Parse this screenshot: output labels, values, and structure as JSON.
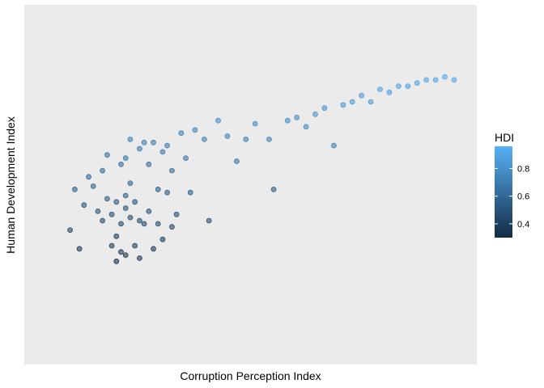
{
  "chart_data": {
    "type": "scatter",
    "xlabel": "Corruption Perception Index",
    "ylabel": "Human Development Index",
    "xlim": [
      1.0,
      10.0
    ],
    "ylim": [
      0.0,
      1.15
    ],
    "grid": false,
    "legend": {
      "title": "HDI",
      "placement": "right",
      "type": "colorbar",
      "range": [
        0.3,
        0.96
      ],
      "ticks": [
        "0.4",
        "0.6",
        "0.8"
      ],
      "tick_values": [
        0.4,
        0.6,
        0.8
      ],
      "color_low": "#132B43",
      "color_high": "#56B1F7"
    },
    "points": [
      [
        1.6,
        0.43
      ],
      [
        1.7,
        0.56
      ],
      [
        1.8,
        0.37
      ],
      [
        1.9,
        0.51
      ],
      [
        2.0,
        0.6
      ],
      [
        2.1,
        0.57
      ],
      [
        2.2,
        0.49
      ],
      [
        2.3,
        0.46
      ],
      [
        2.3,
        0.62
      ],
      [
        2.4,
        0.67
      ],
      [
        2.4,
        0.53
      ],
      [
        2.5,
        0.38
      ],
      [
        2.5,
        0.48
      ],
      [
        2.6,
        0.33
      ],
      [
        2.6,
        0.52
      ],
      [
        2.6,
        0.41
      ],
      [
        2.7,
        0.64
      ],
      [
        2.7,
        0.45
      ],
      [
        2.7,
        0.36
      ],
      [
        2.8,
        0.66
      ],
      [
        2.8,
        0.54
      ],
      [
        2.8,
        0.5
      ],
      [
        2.8,
        0.35
      ],
      [
        2.9,
        0.72
      ],
      [
        2.9,
        0.58
      ],
      [
        2.9,
        0.47
      ],
      [
        3.0,
        0.38
      ],
      [
        3.0,
        0.52
      ],
      [
        3.1,
        0.69
      ],
      [
        3.1,
        0.46
      ],
      [
        3.1,
        0.34
      ],
      [
        3.2,
        0.71
      ],
      [
        3.2,
        0.45
      ],
      [
        3.3,
        0.64
      ],
      [
        3.3,
        0.49
      ],
      [
        3.4,
        0.37
      ],
      [
        3.4,
        0.71
      ],
      [
        3.5,
        0.56
      ],
      [
        3.5,
        0.45
      ],
      [
        3.6,
        0.68
      ],
      [
        3.6,
        0.4
      ],
      [
        3.7,
        0.55
      ],
      [
        3.7,
        0.7
      ],
      [
        3.8,
        0.44
      ],
      [
        3.8,
        0.62
      ],
      [
        3.9,
        0.48
      ],
      [
        4.0,
        0.74
      ],
      [
        4.1,
        0.66
      ],
      [
        4.2,
        0.55
      ],
      [
        4.3,
        0.75
      ],
      [
        4.5,
        0.72
      ],
      [
        4.6,
        0.46
      ],
      [
        4.8,
        0.78
      ],
      [
        5.0,
        0.73
      ],
      [
        5.2,
        0.65
      ],
      [
        5.4,
        0.72
      ],
      [
        5.6,
        0.77
      ],
      [
        5.9,
        0.72
      ],
      [
        6.0,
        0.56
      ],
      [
        6.3,
        0.78
      ],
      [
        6.5,
        0.79
      ],
      [
        6.7,
        0.76
      ],
      [
        6.9,
        0.8
      ],
      [
        7.1,
        0.82
      ],
      [
        7.3,
        0.7
      ],
      [
        7.5,
        0.83
      ],
      [
        7.7,
        0.84
      ],
      [
        7.9,
        0.86
      ],
      [
        8.1,
        0.84
      ],
      [
        8.3,
        0.88
      ],
      [
        8.5,
        0.87
      ],
      [
        8.7,
        0.89
      ],
      [
        8.9,
        0.89
      ],
      [
        9.1,
        0.9
      ],
      [
        9.3,
        0.91
      ],
      [
        9.5,
        0.91
      ],
      [
        9.7,
        0.92
      ],
      [
        9.9,
        0.91
      ]
    ]
  }
}
